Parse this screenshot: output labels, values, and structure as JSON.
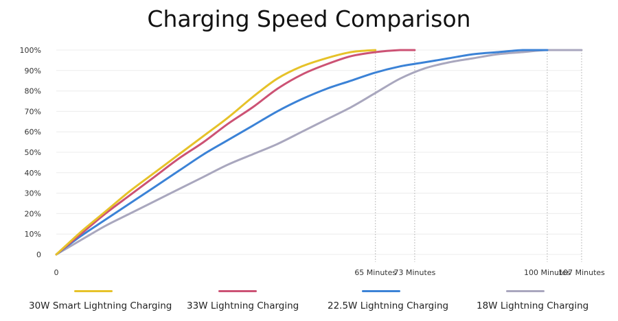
{
  "chart_data": {
    "type": "line",
    "title": "Charging Speed Comparison",
    "xlabel": "",
    "ylabel": "",
    "x_tick_labels": [
      {
        "value": 0,
        "label": "0"
      },
      {
        "value": 65,
        "label": "65 Minutes"
      },
      {
        "value": 73,
        "label": "73 Minutes"
      },
      {
        "value": 100,
        "label": "100 Minutes"
      },
      {
        "value": 107,
        "label": "107 Minutes"
      }
    ],
    "y_tick_labels": [
      {
        "value": 0,
        "label": "0"
      },
      {
        "value": 10,
        "label": "10%"
      },
      {
        "value": 20,
        "label": "20%"
      },
      {
        "value": 30,
        "label": "30%"
      },
      {
        "value": 40,
        "label": "40%"
      },
      {
        "value": 50,
        "label": "50%"
      },
      {
        "value": 60,
        "label": "60%"
      },
      {
        "value": 70,
        "label": "70%"
      },
      {
        "value": 80,
        "label": "80%"
      },
      {
        "value": 90,
        "label": "90%"
      },
      {
        "value": 100,
        "label": "100%"
      }
    ],
    "xlim": [
      0,
      107
    ],
    "ylim": [
      0,
      100
    ],
    "grid": true,
    "legend_position": "bottom",
    "series": [
      {
        "name": "30W Smart Lightning Charging",
        "color": "#E6C229",
        "x": [
          0,
          5,
          10,
          15,
          20,
          25,
          30,
          35,
          40,
          45,
          50,
          55,
          60,
          65
        ],
        "y": [
          0,
          11,
          21,
          31,
          40,
          49,
          58,
          67,
          77,
          86,
          92,
          96,
          99,
          100
        ]
      },
      {
        "name": "33W Lightning Charging",
        "color": "#CC5274",
        "x": [
          0,
          5,
          10,
          15,
          20,
          25,
          30,
          35,
          40,
          45,
          50,
          55,
          60,
          65,
          70,
          73
        ],
        "y": [
          0,
          10,
          20,
          29,
          38,
          47,
          55,
          64,
          72,
          81,
          88,
          93,
          97,
          99,
          100,
          100
        ]
      },
      {
        "name": "22.5W Lightning Charging",
        "color": "#3B82D6",
        "x": [
          0,
          5,
          10,
          15,
          20,
          25,
          30,
          35,
          40,
          45,
          50,
          55,
          60,
          65,
          70,
          75,
          80,
          85,
          90,
          95,
          100
        ],
        "y": [
          0,
          9,
          17,
          25,
          33,
          41,
          49,
          56,
          63,
          70,
          76,
          81,
          85,
          89,
          92,
          94,
          96,
          98,
          99,
          100,
          100
        ]
      },
      {
        "name": "18W Lightning Charging",
        "color": "#A9A7BE",
        "x": [
          0,
          5,
          10,
          15,
          20,
          25,
          30,
          35,
          40,
          45,
          50,
          55,
          60,
          65,
          70,
          75,
          80,
          85,
          90,
          95,
          100,
          107
        ],
        "y": [
          0,
          7,
          14,
          20,
          26,
          32,
          38,
          44,
          49,
          54,
          60,
          66,
          72,
          79,
          86,
          91,
          94,
          96,
          98,
          99,
          100,
          100
        ]
      }
    ]
  }
}
